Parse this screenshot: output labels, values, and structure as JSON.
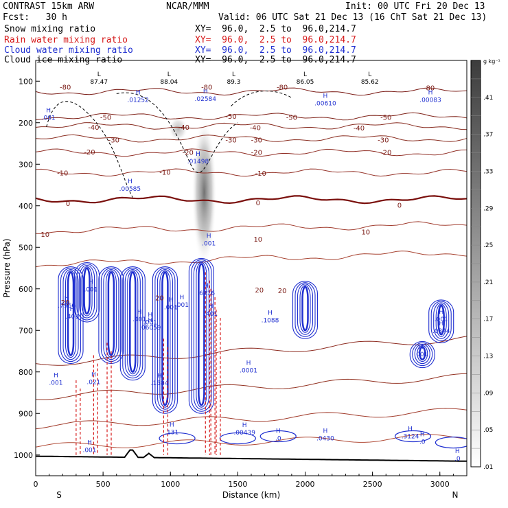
{
  "header": {
    "model": "CONTRAST 15km ARW",
    "org": "NCAR/MMM",
    "init": "Init: 00 UTC Fri 20 Dec 13",
    "fcst": "Fcst:   30 h",
    "valid": "Valid: 06 UTC Sat 21 Dec 13 (16 ChT Sat 21 Dec 13)",
    "fields": [
      {
        "label": "Snow mixing ratio",
        "xy": "XY=  96.0,  2.5 to  96.0,214.7",
        "color": "#000000"
      },
      {
        "label": "Rain water mixing ratio",
        "xy": "XY=  96.0,  2.5 to  96.0,214.7",
        "color": "#d61a1a"
      },
      {
        "label": "Cloud water mixing ratio",
        "xy": "XY=  96.0,  2.5 to  96.0,214.7",
        "color": "#1f2fd0"
      },
      {
        "label": "Cloud ice mixing ratio",
        "xy": "XY=  96.0,  2.5 to  96.0,214.7",
        "color": "#000000"
      }
    ]
  },
  "chart_data": {
    "type": "contour-cross-section",
    "xlabel": "Distance (km)",
    "ylabel": "Pressure (hPa)",
    "xlim": [
      0,
      3200
    ],
    "ylim": [
      1050,
      50
    ],
    "x_ticks": [
      "0",
      "500",
      "1000",
      "1500",
      "2000",
      "2500",
      "3000"
    ],
    "y_ticks": [
      "100",
      "200",
      "300",
      "400",
      "500",
      "600",
      "700",
      "800",
      "900",
      "1000"
    ],
    "end_labels": {
      "left": "S",
      "right": "N"
    },
    "colorbar": {
      "unit": "g kg⁻¹",
      "ticks": [
        ".01",
        ".05",
        ".09",
        ".13",
        ".17",
        ".21",
        ".25",
        ".29",
        ".33",
        ".37",
        ".41"
      ],
      "range": [
        0.01,
        0.45
      ]
    },
    "temperature_contours": [
      {
        "label": "-80",
        "p": 125
      },
      {
        "label": "-50",
        "p": 185
      },
      {
        "label": "-40",
        "p": 208
      },
      {
        "label": "-30",
        "p": 238
      },
      {
        "label": "-20",
        "p": 272
      },
      {
        "label": "-10",
        "p": 320
      },
      {
        "label": "0",
        "p": 385
      },
      {
        "label": "10",
        "p": 460
      },
      {
        "label": "20",
        "p": 542
      }
    ],
    "temperature_labels": [
      {
        "text": "-80",
        "x": 220,
        "p": 114
      },
      {
        "text": "-80",
        "x": 1270,
        "p": 114
      },
      {
        "text": "-80",
        "x": 1830,
        "p": 114
      },
      {
        "text": "-80",
        "x": 2920,
        "p": 115
      },
      {
        "text": "-50",
        "x": 520,
        "p": 186
      },
      {
        "text": "-50",
        "x": 1450,
        "p": 184
      },
      {
        "text": "-50",
        "x": 1900,
        "p": 186
      },
      {
        "text": "-50",
        "x": 2600,
        "p": 186
      },
      {
        "text": "-40",
        "x": 430,
        "p": 210
      },
      {
        "text": "-40",
        "x": 1100,
        "p": 210
      },
      {
        "text": "-40",
        "x": 1630,
        "p": 211
      },
      {
        "text": "-40",
        "x": 2400,
        "p": 212
      },
      {
        "text": "-30",
        "x": 580,
        "p": 241
      },
      {
        "text": "-30",
        "x": 1450,
        "p": 241
      },
      {
        "text": "-30",
        "x": 1640,
        "p": 241
      },
      {
        "text": "-30",
        "x": 2580,
        "p": 241
      },
      {
        "text": "-20",
        "x": 400,
        "p": 270
      },
      {
        "text": "-20",
        "x": 1130,
        "p": 271
      },
      {
        "text": "-20",
        "x": 1640,
        "p": 271
      },
      {
        "text": "-20",
        "x": 2600,
        "p": 271
      },
      {
        "text": "-10",
        "x": 200,
        "p": 320
      },
      {
        "text": "-10",
        "x": 960,
        "p": 319
      },
      {
        "text": "-10",
        "x": 1670,
        "p": 321
      },
      {
        "text": "0",
        "x": 240,
        "p": 394
      },
      {
        "text": "0",
        "x": 1650,
        "p": 392
      },
      {
        "text": "0",
        "x": 2700,
        "p": 398
      },
      {
        "text": "10",
        "x": 70,
        "p": 468
      },
      {
        "text": "10",
        "x": 1650,
        "p": 480
      },
      {
        "text": "10",
        "x": 2450,
        "p": 462
      },
      {
        "text": "20",
        "x": 220,
        "p": 632
      },
      {
        "text": "20",
        "x": 920,
        "p": 621
      },
      {
        "text": "20",
        "x": 1660,
        "p": 602
      },
      {
        "text": "20",
        "x": 1830,
        "p": 604
      }
    ],
    "max_labels": [
      {
        "marker": "L",
        "value": "87.47",
        "x": 470,
        "p": 93
      },
      {
        "marker": "L",
        "value": "88.04",
        "x": 990,
        "p": 93
      },
      {
        "marker": "L",
        "value": "89.3",
        "x": 1470,
        "p": 93
      },
      {
        "marker": "L",
        "value": "86.05",
        "x": 2000,
        "p": 93
      },
      {
        "marker": "L",
        "value": "85.62",
        "x": 2480,
        "p": 93
      },
      {
        "marker": "H",
        "value": ".01252",
        "x": 760,
        "p": 137
      },
      {
        "marker": "H",
        "value": ".02584",
        "x": 1260,
        "p": 134
      },
      {
        "marker": "H",
        "value": ".00610",
        "x": 2150,
        "p": 145
      },
      {
        "marker": "H",
        "value": ".00083",
        "x": 2930,
        "p": 137
      },
      {
        "marker": "H",
        "value": ".001",
        "x": 95,
        "p": 180
      },
      {
        "marker": "H",
        "value": ".01498",
        "x": 1205,
        "p": 285
      },
      {
        "marker": "H",
        "value": ".00585",
        "x": 700,
        "p": 351
      },
      {
        "marker": "H",
        "value": ".001",
        "x": 1285,
        "p": 482
      },
      {
        "marker": "H",
        "value": ".6216",
        "x": 1265,
        "p": 602
      },
      {
        "marker": "H",
        "value": ".7966",
        "x": 230,
        "p": 632
      },
      {
        "marker": "H",
        "value": ".401",
        "x": 270,
        "p": 658
      },
      {
        "marker": "H",
        "value": ".401",
        "x": 770,
        "p": 665
      },
      {
        "marker": "H",
        "value": ".401",
        "x": 1300,
        "p": 652
      },
      {
        "marker": "H",
        "value": ".001",
        "x": 410,
        "p": 593
      },
      {
        "marker": "H",
        "value": ".001",
        "x": 1003,
        "p": 636
      },
      {
        "marker": "H",
        "value": ".001",
        "x": 1085,
        "p": 630
      },
      {
        "marker": "H",
        "value": ".001",
        "x": 850,
        "p": 672
      },
      {
        "marker": "H",
        "value": ".06059",
        "x": 850,
        "p": 685
      },
      {
        "marker": "H",
        "value": ".1088",
        "x": 1740,
        "p": 667
      },
      {
        "marker": "H",
        "value": ".001",
        "x": 3010,
        "p": 665
      },
      {
        "marker": "H",
        "value": ".0844",
        "x": 3010,
        "p": 693
      },
      {
        "marker": "H",
        "value": ".001",
        "x": 2860,
        "p": 749
      },
      {
        "marker": "H",
        "value": ".0001",
        "x": 1580,
        "p": 788
      },
      {
        "marker": "H",
        "value": ".001",
        "x": 150,
        "p": 818
      },
      {
        "marker": "H",
        "value": ".1584",
        "x": 920,
        "p": 819
      },
      {
        "marker": "H",
        "value": ".021",
        "x": 430,
        "p": 816
      },
      {
        "marker": "H",
        "value": ".131",
        "x": 1010,
        "p": 937
      },
      {
        "marker": "H",
        "value": ".00439",
        "x": 1550,
        "p": 938
      },
      {
        "marker": "H",
        "value": ".0",
        "x": 1800,
        "p": 952
      },
      {
        "marker": "H",
        "value": ".0430",
        "x": 2150,
        "p": 952
      },
      {
        "marker": "H",
        "value": ".3124",
        "x": 2780,
        "p": 947
      },
      {
        "marker": "H",
        "value": ".0",
        "x": 2870,
        "p": 960
      },
      {
        "marker": "H",
        "value": ".0",
        "x": 3130,
        "p": 1000
      },
      {
        "marker": "H",
        "value": ".001",
        "x": 400,
        "p": 980
      }
    ],
    "shaded_feature": {
      "description_value": "snow mixing ratio column",
      "x": 1210,
      "p_top": 190,
      "p_bottom": 545
    }
  }
}
